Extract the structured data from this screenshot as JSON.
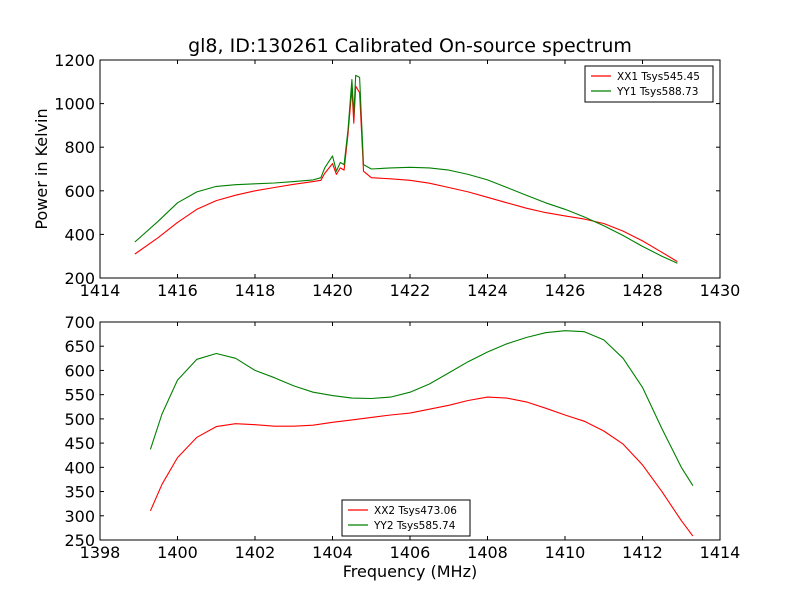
{
  "chart_data": [
    {
      "type": "line",
      "title": "gl8, ID:130261 Calibrated On-source spectrum",
      "xlabel": "",
      "ylabel": "Power in Kelvin",
      "xlim": [
        1414,
        1430
      ],
      "ylim": [
        200,
        1200
      ],
      "xticks": [
        "1414",
        "1416",
        "1418",
        "1420",
        "1422",
        "1424",
        "1426",
        "1428",
        "1430"
      ],
      "yticks": [
        "200",
        "400",
        "600",
        "800",
        "1000",
        "1200"
      ],
      "legend_position": "top-right",
      "grid": false,
      "series": [
        {
          "name": "XX1 Tsys545.45",
          "color": "#ff0000",
          "x": [
            1414.9,
            1415.5,
            1416,
            1416.5,
            1417,
            1417.5,
            1418,
            1418.5,
            1419,
            1419.5,
            1419.7,
            1419.8,
            1420.0,
            1420.1,
            1420.2,
            1420.3,
            1420.4,
            1420.5,
            1420.55,
            1420.6,
            1420.7,
            1420.8,
            1421,
            1421.5,
            1422,
            1422.5,
            1423,
            1423.5,
            1424,
            1424.5,
            1425,
            1425.5,
            1426,
            1426.5,
            1427,
            1427.5,
            1428,
            1428.5,
            1428.9
          ],
          "y": [
            310,
            385,
            455,
            515,
            555,
            580,
            600,
            615,
            630,
            642,
            648,
            680,
            725,
            675,
            705,
            695,
            860,
            1070,
            910,
            1080,
            1050,
            690,
            660,
            655,
            648,
            635,
            615,
            595,
            570,
            545,
            520,
            500,
            485,
            470,
            450,
            415,
            370,
            318,
            275
          ]
        },
        {
          "name": "YY1 Tsys588.73",
          "color": "#008000",
          "x": [
            1414.9,
            1415.5,
            1416,
            1416.5,
            1417,
            1417.5,
            1418,
            1418.5,
            1419,
            1419.5,
            1419.7,
            1419.8,
            1420.0,
            1420.1,
            1420.2,
            1420.3,
            1420.4,
            1420.5,
            1420.55,
            1420.6,
            1420.7,
            1420.8,
            1421,
            1421.5,
            1422,
            1422.5,
            1423,
            1423.5,
            1424,
            1424.5,
            1425,
            1425.5,
            1426,
            1426.5,
            1427,
            1427.5,
            1428,
            1428.5,
            1428.9
          ],
          "y": [
            365,
            460,
            545,
            595,
            620,
            628,
            632,
            636,
            642,
            650,
            660,
            705,
            760,
            690,
            730,
            720,
            880,
            1110,
            950,
            1130,
            1120,
            720,
            700,
            705,
            708,
            705,
            695,
            675,
            650,
            615,
            580,
            545,
            515,
            480,
            440,
            395,
            345,
            300,
            268
          ]
        }
      ]
    },
    {
      "type": "line",
      "title": "",
      "xlabel": "Frequency (MHz)",
      "ylabel": "",
      "xlim": [
        1398,
        1414
      ],
      "ylim": [
        250,
        700
      ],
      "xticks": [
        "1398",
        "1400",
        "1402",
        "1404",
        "1406",
        "1408",
        "1410",
        "1412",
        "1414"
      ],
      "yticks": [
        "250",
        "300",
        "350",
        "400",
        "450",
        "500",
        "550",
        "600",
        "650",
        "700"
      ],
      "legend_position": "lower-center",
      "grid": false,
      "series": [
        {
          "name": "XX2 Tsys473.06",
          "color": "#ff0000",
          "x": [
            1399.3,
            1399.6,
            1400,
            1400.5,
            1401,
            1401.5,
            1402,
            1402.5,
            1403,
            1403.5,
            1404,
            1404.5,
            1405,
            1405.5,
            1406,
            1406.5,
            1407,
            1407.5,
            1408,
            1408.5,
            1409,
            1409.5,
            1410,
            1410.5,
            1411,
            1411.5,
            1412,
            1412.5,
            1413,
            1413.3
          ],
          "y": [
            310,
            365,
            420,
            462,
            484,
            490,
            488,
            485,
            485,
            487,
            493,
            498,
            503,
            508,
            512,
            520,
            528,
            538,
            545,
            543,
            535,
            522,
            508,
            495,
            475,
            448,
            405,
            350,
            290,
            258
          ]
        },
        {
          "name": "YY2 Tsys585.74",
          "color": "#008000",
          "x": [
            1399.3,
            1399.6,
            1400,
            1400.5,
            1401,
            1401.5,
            1402,
            1402.5,
            1403,
            1403.5,
            1404,
            1404.5,
            1405,
            1405.5,
            1406,
            1406.5,
            1407,
            1407.5,
            1408,
            1408.5,
            1409,
            1409.5,
            1410,
            1410.5,
            1411,
            1411.5,
            1412,
            1412.5,
            1413,
            1413.3
          ],
          "y": [
            437,
            510,
            580,
            623,
            635,
            625,
            600,
            585,
            568,
            555,
            548,
            543,
            542,
            545,
            555,
            572,
            595,
            618,
            638,
            655,
            668,
            678,
            682,
            680,
            663,
            625,
            565,
            480,
            400,
            362
          ]
        }
      ]
    }
  ]
}
